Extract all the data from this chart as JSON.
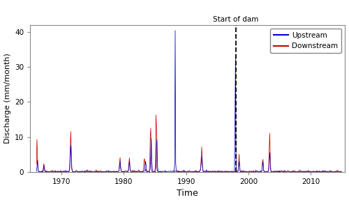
{
  "title": "Start of dam",
  "xlabel": "Time",
  "ylabel": "Discharge (mm/month)",
  "xlim": [
    1965.0,
    2015.5
  ],
  "ylim": [
    0,
    42
  ],
  "yticks": [
    0,
    10,
    20,
    30,
    40
  ],
  "xticks": [
    1970,
    1980,
    1990,
    2000,
    2010
  ],
  "dam_year": 1998.0,
  "upstream_color": "#0000CC",
  "downstream_color": "#CC0000",
  "gap_start": 1986.333,
  "gap_end": 1988.083,
  "figsize": [
    5.0,
    2.9
  ],
  "dpi": 100,
  "bg_color": "#FFFFFF",
  "spine_color": "#888888"
}
